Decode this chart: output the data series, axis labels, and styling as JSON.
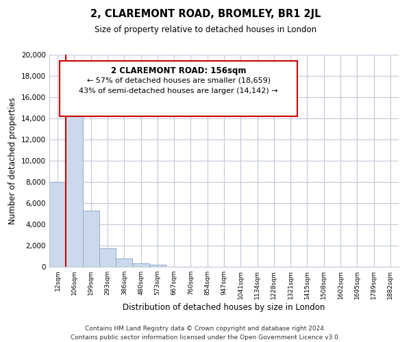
{
  "title": "2, CLAREMONT ROAD, BROMLEY, BR1 2JL",
  "subtitle": "Size of property relative to detached houses in London",
  "xlabel": "Distribution of detached houses by size in London",
  "ylabel": "Number of detached properties",
  "bar_color": "#ccd9ec",
  "bar_edge_color": "#8eaad0",
  "vline_color": "#cc0000",
  "vline_x": 0.5,
  "categories": [
    "12sqm",
    "106sqm",
    "199sqm",
    "293sqm",
    "386sqm",
    "480sqm",
    "573sqm",
    "667sqm",
    "760sqm",
    "854sqm",
    "947sqm",
    "1041sqm",
    "1134sqm",
    "1228sqm",
    "1321sqm",
    "1415sqm",
    "1508sqm",
    "1602sqm",
    "1695sqm",
    "1789sqm",
    "1882sqm"
  ],
  "values": [
    8000,
    16500,
    5300,
    1750,
    750,
    300,
    200,
    0,
    0,
    0,
    0,
    0,
    0,
    0,
    0,
    0,
    0,
    0,
    0,
    0,
    0
  ],
  "ylim": [
    0,
    20000
  ],
  "yticks": [
    0,
    2000,
    4000,
    6000,
    8000,
    10000,
    12000,
    14000,
    16000,
    18000,
    20000
  ],
  "annotation_title": "2 CLAREMONT ROAD: 156sqm",
  "annotation_line1": "← 57% of detached houses are smaller (18,659)",
  "annotation_line2": "43% of semi-detached houses are larger (14,142) →",
  "footer1": "Contains HM Land Registry data © Crown copyright and database right 2024.",
  "footer2": "Contains public sector information licensed under the Open Government Licence v3.0.",
  "background_color": "#ffffff",
  "grid_color": "#c0c8d8"
}
